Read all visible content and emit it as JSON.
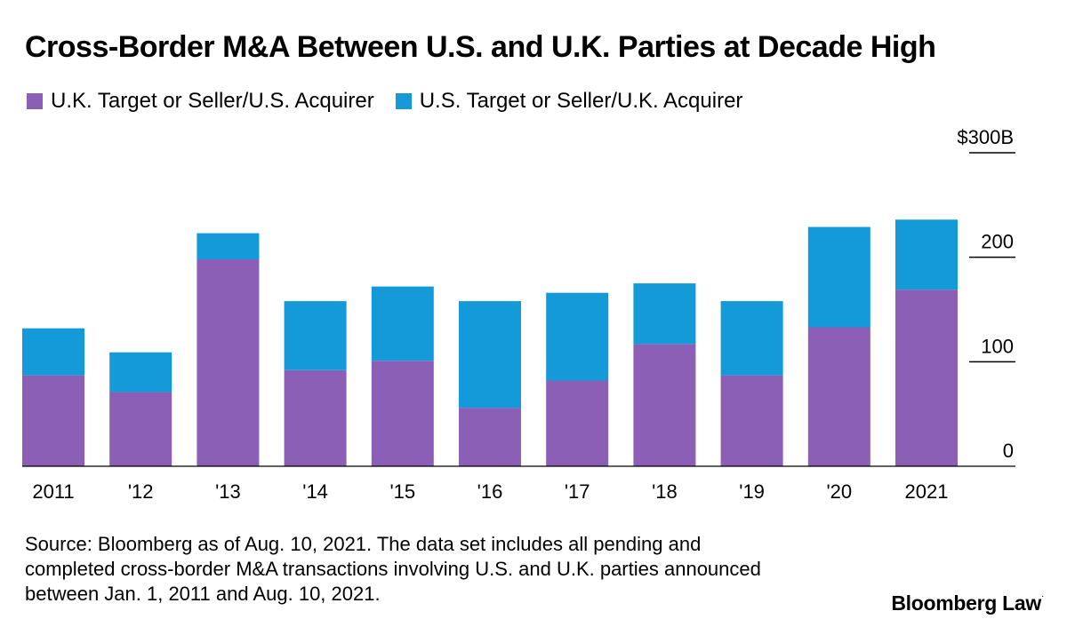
{
  "title": "Cross-Border M&A Between U.S. and U.K. Parties at Decade High",
  "colors": {
    "uk_target": "#8a5fb5",
    "us_target": "#149ad9"
  },
  "chart_data": {
    "type": "bar",
    "stacked": true,
    "categories": [
      "2011",
      "'12",
      "'13",
      "'14",
      "'15",
      "'16",
      "'17",
      "'18",
      "'19",
      "'20",
      "2021"
    ],
    "series": [
      {
        "name": "U.K. Target or Seller/U.S. Acquirer",
        "color": "#8a5fb5",
        "values": [
          87,
          71,
          198,
          92,
          101,
          56,
          82,
          117,
          87,
          133,
          169
        ]
      },
      {
        "name": "U.S. Target or Seller/U.K. Acquirer",
        "color": "#149ad9",
        "values": [
          45,
          38,
          25,
          66,
          71,
          102,
          84,
          58,
          71,
          96,
          67
        ]
      }
    ],
    "ylim": [
      0,
      300
    ],
    "y_ticks": [
      0,
      100,
      200,
      300
    ],
    "y_tick_labels": [
      "0",
      "100",
      "200",
      "$300B"
    ],
    "y_axis_position": "right",
    "legend_position": "top-left",
    "grid": false
  },
  "source": {
    "line1": "Source: Bloomberg as of Aug. 10, 2021. The data set includes all pending and",
    "line2": "completed cross-border M&A transactions involving U.S. and U.K. parties announced",
    "line3": "between Jan. 1, 2011 and Aug. 10, 2021."
  },
  "brand": {
    "name": "Bloomberg Law",
    "mark": "·"
  }
}
